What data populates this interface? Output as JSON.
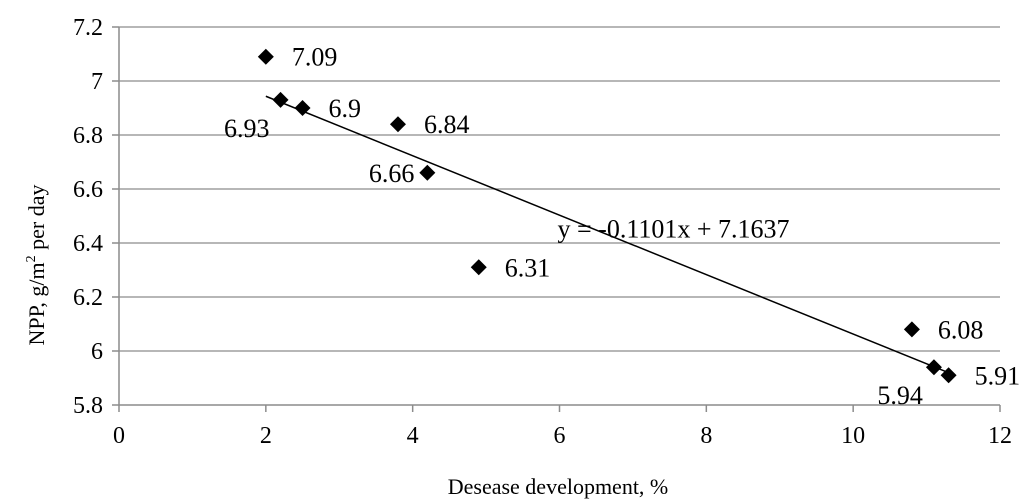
{
  "chart_data": {
    "type": "scatter",
    "xlabel": "Desease development, %",
    "ylabel_parts": {
      "main": "NPP, g/m",
      "sup": "2",
      "rest": " per day"
    },
    "xlim": [
      0,
      12
    ],
    "ylim": [
      5.8,
      7.2
    ],
    "xticks": [
      0,
      2,
      4,
      6,
      8,
      10,
      12
    ],
    "yticks": [
      5.8,
      6,
      6.2,
      6.4,
      6.6,
      6.8,
      7,
      7.2
    ],
    "grid": "horizontal",
    "points": [
      {
        "x": 2.0,
        "y": 7.09,
        "label": "7.09",
        "anchor": "right"
      },
      {
        "x": 2.2,
        "y": 6.93,
        "label": "6.93",
        "anchor": "below-left"
      },
      {
        "x": 2.5,
        "y": 6.9,
        "label": "6.9",
        "anchor": "right"
      },
      {
        "x": 3.8,
        "y": 6.84,
        "label": "6.84",
        "anchor": "right"
      },
      {
        "x": 4.2,
        "y": 6.66,
        "label": "6.66",
        "anchor": "left"
      },
      {
        "x": 4.9,
        "y": 6.31,
        "label": "6.31",
        "anchor": "right"
      },
      {
        "x": 10.8,
        "y": 6.08,
        "label": "6.08",
        "anchor": "right"
      },
      {
        "x": 11.1,
        "y": 5.94,
        "label": "5.94",
        "anchor": "below-left"
      },
      {
        "x": 11.3,
        "y": 5.91,
        "label": "5.91",
        "anchor": "right"
      }
    ],
    "trendline": {
      "type": "linear",
      "slope": -0.1101,
      "intercept": 7.1637,
      "x_range": [
        2.0,
        11.3
      ],
      "equation": "y = -0.1101x + 7.1637"
    },
    "colors": {
      "marker": "#000000",
      "grid": "#8c8c8c",
      "axis": "#8c8c8c",
      "trend": "#000000"
    }
  }
}
